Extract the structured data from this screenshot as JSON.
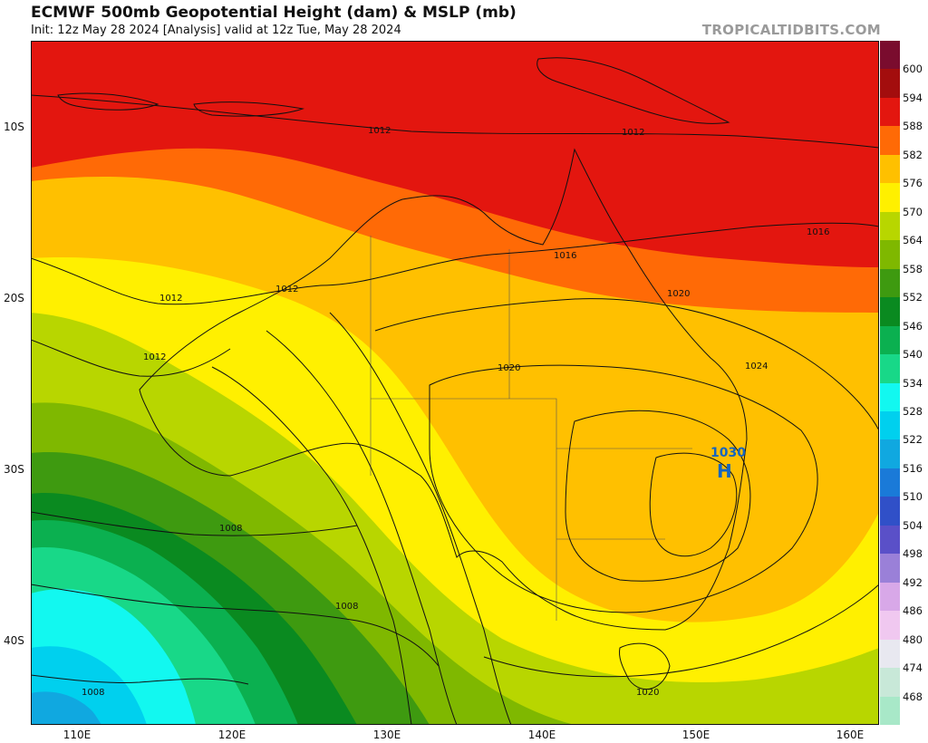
{
  "header": {
    "title": "ECMWF 500mb Geopotential Height (dam) & MSLP (mb)",
    "subtitle": "Init: 12z May 28 2024   [Analysis]   valid at 12z Tue, May 28 2024",
    "brand": "TROPICALTIDBITS.COM"
  },
  "axes": {
    "lat_labels": [
      "10S",
      "20S",
      "30S",
      "40S"
    ],
    "lon_labels": [
      "110E",
      "120E",
      "130E",
      "140E",
      "150E",
      "160E"
    ]
  },
  "colorbar": {
    "levels": [
      "600",
      "594",
      "588",
      "582",
      "576",
      "570",
      "564",
      "558",
      "552",
      "546",
      "540",
      "534",
      "528",
      "522",
      "516",
      "510",
      "504",
      "498",
      "492",
      "486",
      "480",
      "474",
      "468"
    ],
    "colors": [
      "#7a0c2e",
      "#a30d0d",
      "#e3160f",
      "#ff6a06",
      "#ffc000",
      "#fff000",
      "#b8d600",
      "#7fb800",
      "#3e9a10",
      "#0a8a20",
      "#0bb050",
      "#18d888",
      "#12f8f0",
      "#00d0ee",
      "#10a8e0",
      "#1a7ad8",
      "#3050c8",
      "#5a50c8",
      "#9a80d8",
      "#d8a8e8",
      "#f0c8f0",
      "#e8e8f0",
      "#c8e8d8",
      "#a8e8c8"
    ]
  },
  "pressure_labels": [
    "1012",
    "1012",
    "1012",
    "1012",
    "1012",
    "1016",
    "1016",
    "1020",
    "1020",
    "1024",
    "1008",
    "1008",
    "1008",
    "1020"
  ],
  "high_center": {
    "value": "1030",
    "symbol": "H"
  }
}
